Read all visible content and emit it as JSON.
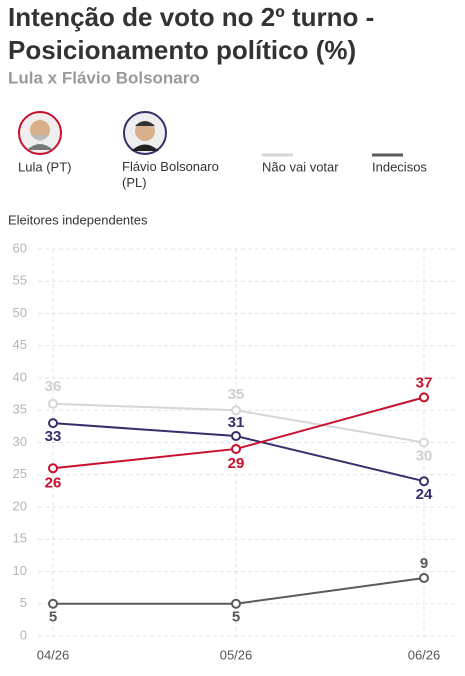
{
  "chart_data": {
    "type": "line",
    "title": "Intenção de voto no 2º turno - Posicionamento político (%)",
    "subtitle": "Lula x Flávio Bolsonaro",
    "y_label": "Eleitores independentes",
    "categories": [
      "04/26",
      "05/26",
      "06/26"
    ],
    "series": [
      {
        "name": "Lula (PT)",
        "color": "#c8102e",
        "values": [
          26,
          29,
          37
        ]
      },
      {
        "name": "Flávio Bolsonaro (PL)",
        "color": "#3a2d6b",
        "values": [
          33,
          31,
          24
        ]
      },
      {
        "name": "Não vai votar",
        "color": "#d6d6d6",
        "values": [
          36,
          35,
          30
        ]
      },
      {
        "name": "Indecisos",
        "color": "#5a5a5a",
        "values": [
          5,
          5,
          9
        ]
      }
    ],
    "ylim": [
      0,
      60
    ],
    "yticks": [
      0,
      5,
      10,
      15,
      20,
      25,
      30,
      35,
      40,
      45,
      50,
      55,
      60
    ],
    "grid": true
  }
}
